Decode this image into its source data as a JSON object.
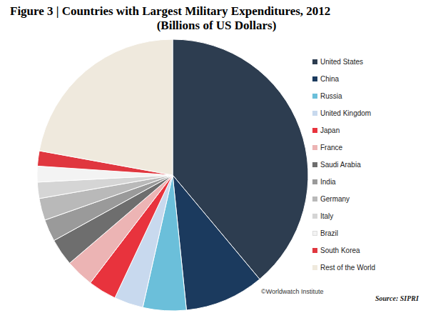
{
  "chart_data": {
    "type": "pie",
    "title": "Figure 3 | Countries with Largest Military Expenditures, 2012",
    "subtitle": "(Billions of US Dollars)",
    "categories": [
      "United States",
      "China",
      "Russia",
      "United Kingdom",
      "Japan",
      "France",
      "Saudi Arabia",
      "India",
      "Germany",
      "Italy",
      "Brazil",
      "South Korea",
      "Rest of the World"
    ],
    "values": [
      682,
      166,
      90.7,
      60.8,
      59.3,
      58.9,
      56.7,
      46.1,
      45.8,
      34.0,
      33.1,
      31.7,
      388
    ],
    "colors": [
      "#2d3d50",
      "#1b3a5e",
      "#6bbfda",
      "#c8d9ee",
      "#e8333d",
      "#ecb4b4",
      "#6e6e6e",
      "#9a9a9a",
      "#b9b9b9",
      "#d5d5d5",
      "#f3f3f3",
      "#e0373f",
      "#efe9dd"
    ],
    "legend": "right",
    "annotations": [
      "©Worldwatch Institute",
      "Source: SIPRI"
    ]
  }
}
